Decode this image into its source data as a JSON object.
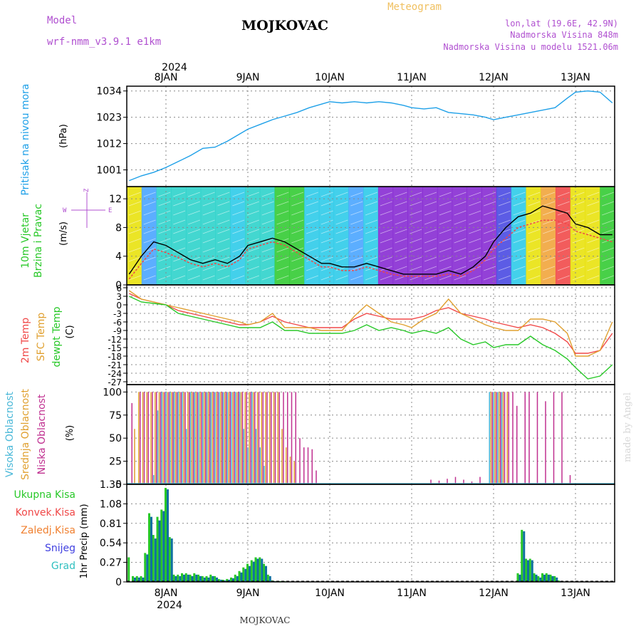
{
  "header": {
    "model_label": "Model",
    "model_name": "wrf-nmm_v3.9.1 e1km",
    "station": "MOJKOVAC",
    "meteogram": "Meteogram",
    "lonlat": "lon,lat (19.6E, 42.9N)",
    "altitude": "Nadmorska Visina 848m",
    "model_altitude": "Nadmorska Visina u modelu 1521.06m",
    "footer_station": "MOJKOVAC",
    "signature": "made by Angel"
  },
  "colors": {
    "pressure": "#1ea0e8",
    "temp2m": "#f04848",
    "sfc": "#e0a030",
    "dewpt": "#28c828",
    "high_cloud": "#4ab8d8",
    "mid_cloud": "#e0a030",
    "low_cloud": "#c03090",
    "precip_total": "#28c828",
    "precip_conv": "#f04848",
    "precip_strat": "#f08030",
    "precip_snow": "#4040e0",
    "precip_graup": "#30c0c0",
    "grid": "#888888"
  },
  "time_axis": {
    "top_year": "2024",
    "bottom_year": "2024",
    "ticks": [
      "8JAN",
      "9JAN",
      "10JAN",
      "11JAN",
      "12JAN",
      "13JAN"
    ]
  },
  "chart_data": [
    {
      "type": "line",
      "id": "pressure",
      "ylabel_left": "Pritisak na nivou mora",
      "ylabel_unit": "(hPa)",
      "ylim": [
        994,
        1036
      ],
      "yticks": [
        1001,
        1012,
        1023,
        1034
      ],
      "grid": true,
      "x": [
        -0.45,
        -0.3,
        -0.15,
        0.0,
        0.15,
        0.3,
        0.45,
        0.6,
        0.75,
        0.9,
        1.0,
        1.15,
        1.3,
        1.45,
        1.6,
        1.75,
        1.9,
        2.0,
        2.15,
        2.3,
        2.45,
        2.6,
        2.75,
        2.9,
        3.0,
        3.15,
        3.3,
        3.45,
        3.6,
        3.75,
        3.9,
        4.0,
        4.15,
        4.3,
        4.45,
        4.6,
        4.75,
        4.9,
        5.0,
        5.15,
        5.3,
        5.45
      ],
      "series": [
        {
          "values": [
            996.5,
            998.5,
            1000,
            1002,
            1004.5,
            1007,
            1010,
            1010.5,
            1013,
            1016,
            1018,
            1020,
            1022,
            1023.5,
            1025,
            1027,
            1028.5,
            1029.5,
            1029,
            1029.5,
            1029,
            1029.5,
            1029,
            1028,
            1027,
            1026.5,
            1027,
            1025,
            1024.5,
            1024,
            1023,
            1022,
            1023,
            1024,
            1025,
            1026,
            1027,
            1031,
            1033.5,
            1034,
            1033.5,
            1029
          ]
        }
      ]
    },
    {
      "type": "line",
      "id": "wind",
      "ylabel_left": "10m Vjetar",
      "ylabel_left2": "Brzina i Pravac",
      "ylabel_unit": "(m/s)",
      "compass_w": "W",
      "compass_e": "E",
      "compass_z": "Z",
      "ylim": [
        0,
        13.7
      ],
      "yticks": [
        0,
        4,
        8,
        12
      ],
      "grid": true,
      "x": [
        -0.45,
        -0.3,
        -0.15,
        0.0,
        0.15,
        0.3,
        0.45,
        0.6,
        0.75,
        0.9,
        1.0,
        1.15,
        1.3,
        1.45,
        1.6,
        1.75,
        1.9,
        2.0,
        2.15,
        2.3,
        2.45,
        2.6,
        2.75,
        2.9,
        3.0,
        3.15,
        3.3,
        3.45,
        3.6,
        3.75,
        3.9,
        4.0,
        4.15,
        4.3,
        4.45,
        4.6,
        4.75,
        4.9,
        5.0,
        5.15,
        5.3,
        5.45
      ],
      "series": [
        {
          "name": "speed",
          "values": [
            1.5,
            4,
            6,
            5.5,
            4.5,
            3.5,
            3,
            3.5,
            3,
            4,
            5.5,
            6,
            6.5,
            6,
            5,
            4,
            3,
            3,
            2.5,
            2.5,
            3,
            2.5,
            2,
            1.5,
            1.5,
            1.5,
            1.5,
            2,
            1.5,
            2.5,
            4,
            6,
            8,
            9.5,
            10,
            11,
            10.5,
            10,
            8.5,
            8,
            7,
            7
          ]
        },
        {
          "name": "gust",
          "values": [
            0.8,
            3,
            5,
            4.5,
            3.8,
            3,
            2.5,
            3,
            2.5,
            3.5,
            5,
            5.5,
            6,
            5.5,
            4.5,
            3.5,
            2.5,
            2.5,
            2,
            2,
            2.5,
            2,
            1.5,
            1.2,
            1.2,
            1.2,
            1.2,
            1.5,
            1.2,
            2,
            3.5,
            5,
            6.5,
            8,
            8.5,
            9,
            9,
            8.5,
            7.5,
            7,
            6.5,
            6
          ]
        }
      ],
      "band_colors": [
        "#e8e000",
        "#40a0ff",
        "#22d0c8",
        "#22d0c8",
        "#22d0c8",
        "#22d0c8",
        "#22d0c8",
        "#22c8e8",
        "#22d0c8",
        "#22d0c8",
        "#28c828",
        "#28c828",
        "#22c8e8",
        "#22c8e8",
        "#22c8e8",
        "#40a0ff",
        "#22c8e8",
        "#8020d0",
        "#8020d0",
        "#8020d0",
        "#8020d0",
        "#8020d0",
        "#8020d0",
        "#8020d0",
        "#8020d0",
        "#4040e0",
        "#22c8e8",
        "#e8e000",
        "#f0a030",
        "#f04040",
        "#e8e000",
        "#e8e000",
        "#28c828"
      ]
    },
    {
      "type": "line",
      "id": "temperature",
      "ylabel_left": "2m Temp",
      "ylabel_left2": "SFC Temp",
      "ylabel_left3": "dewpt Temp",
      "ylabel_unit": "(C)",
      "ylim": [
        -28,
        7
      ],
      "yticks": [
        -27,
        -24,
        -21,
        -18,
        -15,
        -12,
        -9,
        -6,
        -3,
        0,
        3,
        6
      ],
      "grid": true,
      "x": [
        -0.45,
        -0.3,
        -0.15,
        0.0,
        0.15,
        0.3,
        0.45,
        0.6,
        0.75,
        0.9,
        1.0,
        1.15,
        1.3,
        1.45,
        1.6,
        1.75,
        1.9,
        2.0,
        2.15,
        2.3,
        2.45,
        2.6,
        2.75,
        2.9,
        3.0,
        3.15,
        3.3,
        3.45,
        3.6,
        3.75,
        3.9,
        4.0,
        4.15,
        4.3,
        4.45,
        4.6,
        4.75,
        4.9,
        5.0,
        5.15,
        5.3,
        5.45
      ],
      "series": [
        {
          "name": "2m Temp",
          "values": [
            4,
            2,
            1,
            0,
            -2,
            -3,
            -4,
            -5,
            -6,
            -7,
            -7,
            -6,
            -4,
            -6,
            -7,
            -8,
            -8,
            -8,
            -8,
            -5,
            -3,
            -4,
            -5,
            -5,
            -5,
            -4,
            -2,
            -1,
            -3,
            -4,
            -5,
            -6,
            -7,
            -8,
            -7,
            -8,
            -10,
            -13,
            -17,
            -17,
            -16,
            -10
          ]
        },
        {
          "name": "SFC Temp",
          "values": [
            5,
            2,
            1,
            0,
            -1,
            -2,
            -3,
            -4,
            -5,
            -6,
            -7,
            -6,
            -3,
            -8,
            -8,
            -8,
            -9,
            -9,
            -9,
            -4,
            0,
            -3,
            -6,
            -7,
            -8,
            -5,
            -3,
            2,
            -3,
            -5,
            -7,
            -8,
            -9,
            -9,
            -5,
            -5,
            -6,
            -10,
            -18,
            -18,
            -16,
            -6
          ]
        },
        {
          "name": "dewpt Temp",
          "values": [
            3,
            1,
            0.5,
            0,
            -3,
            -4,
            -5,
            -6,
            -7,
            -8,
            -8,
            -8,
            -6,
            -9,
            -9,
            -10,
            -10,
            -10,
            -10,
            -9,
            -7,
            -9,
            -8,
            -9,
            -10,
            -9,
            -10,
            -8,
            -12,
            -14,
            -13,
            -15,
            -14,
            -14,
            -11,
            -14,
            -16,
            -19,
            -22,
            -26,
            -25,
            -21
          ]
        }
      ]
    },
    {
      "type": "bar",
      "id": "cloud",
      "ylabel_left": "Visoka Oblacnost",
      "ylabel_left2": "Srednja Oblacnost",
      "ylabel_left3": "Niska Oblacnost",
      "ylabel_unit": "(%)",
      "ylim": [
        0,
        108
      ],
      "yticks": [
        0,
        25,
        50,
        75,
        100
      ],
      "grid": true,
      "x": [
        -0.45,
        -0.4,
        -0.35,
        -0.3,
        -0.25,
        -0.2,
        -0.15,
        -0.1,
        -0.05,
        0.0,
        0.05,
        0.1,
        0.15,
        0.2,
        0.25,
        0.3,
        0.35,
        0.4,
        0.45,
        0.5,
        0.55,
        0.6,
        0.65,
        0.7,
        0.75,
        0.8,
        0.85,
        0.9,
        0.95,
        1.0,
        1.05,
        1.1,
        1.15,
        1.2,
        1.25,
        1.3,
        1.35,
        1.4,
        1.45,
        1.5,
        1.55,
        1.6,
        1.65,
        1.7,
        1.75,
        1.8,
        1.85,
        1.9,
        2.0,
        2.1,
        2.2,
        3.2,
        3.3,
        3.4,
        3.5,
        3.6,
        3.7,
        3.8,
        3.95,
        4.0,
        4.05,
        4.1,
        4.15,
        4.2,
        4.25,
        4.3,
        4.35,
        4.4,
        4.5,
        4.6,
        4.7,
        4.8,
        4.9
      ],
      "series": [
        {
          "name": "Visoka Oblacnost",
          "values": [
            0,
            0,
            0,
            0,
            0,
            0,
            10,
            80,
            100,
            100,
            100,
            100,
            100,
            100,
            60,
            100,
            100,
            100,
            100,
            100,
            100,
            100,
            100,
            100,
            100,
            100,
            100,
            100,
            60,
            40,
            100,
            60,
            40,
            20,
            0,
            0,
            0,
            0,
            0,
            0,
            0,
            0,
            0,
            0,
            0,
            0,
            0,
            0,
            0,
            0,
            0,
            0,
            0,
            0,
            0,
            0,
            0,
            0,
            100,
            100,
            100,
            100,
            0,
            0,
            0,
            0,
            0,
            0,
            0,
            0,
            0,
            0,
            0
          ]
        },
        {
          "name": "Srednja Oblacnost",
          "values": [
            0,
            60,
            100,
            100,
            100,
            100,
            100,
            100,
            100,
            100,
            100,
            100,
            100,
            100,
            100,
            100,
            100,
            100,
            100,
            100,
            100,
            100,
            100,
            100,
            100,
            100,
            100,
            100,
            100,
            100,
            100,
            100,
            100,
            100,
            100,
            100,
            100,
            60,
            40,
            30,
            25,
            0,
            0,
            0,
            0,
            0,
            0,
            0,
            0,
            0,
            0,
            0,
            0,
            0,
            0,
            0,
            0,
            0,
            100,
            100,
            100,
            100,
            100,
            0,
            0,
            0,
            0,
            0,
            0,
            0,
            0,
            0,
            0
          ]
        },
        {
          "name": "Niska Oblacnost",
          "values": [
            88,
            0,
            100,
            100,
            100,
            100,
            100,
            100,
            100,
            100,
            100,
            100,
            100,
            100,
            100,
            100,
            100,
            100,
            100,
            100,
            100,
            100,
            100,
            100,
            100,
            100,
            100,
            100,
            100,
            100,
            100,
            100,
            100,
            100,
            100,
            100,
            100,
            100,
            100,
            100,
            100,
            50,
            40,
            40,
            38,
            15,
            0,
            0,
            0,
            0,
            0,
            5,
            4,
            6,
            8,
            5,
            3,
            8,
            100,
            100,
            100,
            100,
            100,
            100,
            85,
            0,
            100,
            100,
            100,
            90,
            100,
            100,
            10
          ]
        }
      ]
    },
    {
      "type": "bar",
      "id": "precip",
      "ylabel_left": "1hr Precip",
      "ylabel_unit": "(mm)",
      "legend": [
        "Ukupna  Kisa",
        "Konvek.Kisa",
        "Zaledj.Kisa",
        "Snijeg",
        "Grad"
      ],
      "ylim": [
        0,
        1.35
      ],
      "yticks": [
        0,
        0.27,
        0.54,
        0.81,
        1.08,
        1.35
      ],
      "grid": true,
      "x": [
        -0.45,
        -0.4,
        -0.35,
        -0.3,
        -0.25,
        -0.2,
        -0.15,
        -0.1,
        -0.05,
        0.0,
        0.05,
        0.1,
        0.15,
        0.2,
        0.25,
        0.3,
        0.35,
        0.4,
        0.45,
        0.5,
        0.55,
        0.6,
        0.65,
        0.7,
        0.75,
        0.8,
        0.85,
        0.9,
        0.95,
        1.0,
        1.05,
        1.1,
        1.15,
        1.2,
        1.25,
        1.3,
        1.35,
        1.4,
        1.45,
        4.3,
        4.35,
        4.4,
        4.45,
        4.5,
        4.55,
        4.6,
        4.65,
        4.7,
        4.75,
        4.8
      ],
      "series": [
        {
          "name": "Ukupna  Kisa",
          "values": [
            0.34,
            0.08,
            0.08,
            0.08,
            0.4,
            0.95,
            0.65,
            0.9,
            1.0,
            1.3,
            0.62,
            0.1,
            0.1,
            0.12,
            0.12,
            0.1,
            0.12,
            0.1,
            0.08,
            0.08,
            0.1,
            0.08,
            0.04,
            0.03,
            0.04,
            0.06,
            0.1,
            0.15,
            0.2,
            0.25,
            0.3,
            0.34,
            0.34,
            0.25,
            0.1,
            0.02,
            0.01,
            0.01,
            0.01,
            0.12,
            0.72,
            0.32,
            0.32,
            0.12,
            0.08,
            0.12,
            0.12,
            0.1,
            0.08,
            0.02
          ]
        },
        {
          "name": "Snijeg",
          "values": [
            0.0,
            0.06,
            0.06,
            0.06,
            0.38,
            0.9,
            0.6,
            0.85,
            0.98,
            1.28,
            0.6,
            0.08,
            0.08,
            0.1,
            0.1,
            0.08,
            0.1,
            0.08,
            0.06,
            0.06,
            0.08,
            0.06,
            0.03,
            0.02,
            0.03,
            0.05,
            0.08,
            0.13,
            0.18,
            0.22,
            0.28,
            0.32,
            0.32,
            0.22,
            0.08,
            0.01,
            0.005,
            0.005,
            0.005,
            0.1,
            0.7,
            0.3,
            0.3,
            0.1,
            0.06,
            0.1,
            0.1,
            0.08,
            0.06,
            0.01
          ]
        }
      ]
    }
  ]
}
